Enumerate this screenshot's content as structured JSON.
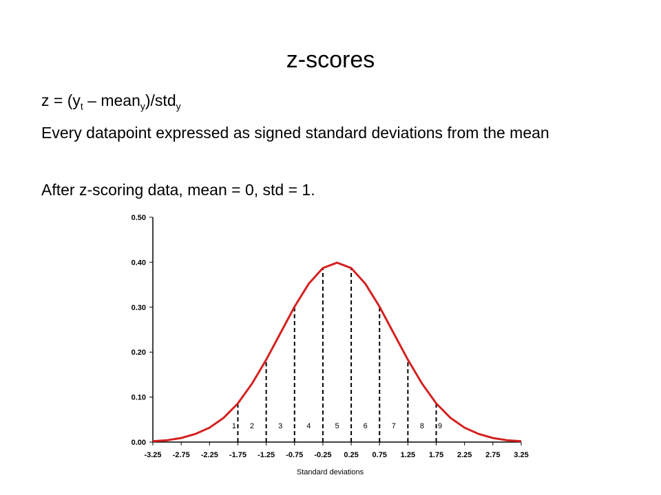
{
  "slide": {
    "title": "z-scores",
    "formula": [
      "z = (y",
      "t",
      " – mean",
      "y",
      ")/std",
      "y"
    ],
    "bullets": [
      "Every datapoint expressed as signed standard deviations from the mean",
      "After z-scoring data, mean = 0, std = 1."
    ]
  },
  "chart_data": {
    "type": "line",
    "xlabel": "Standard deviations",
    "x": [
      -3.25,
      -3,
      -2.75,
      -2.5,
      -2.25,
      -2,
      -1.75,
      -1.5,
      -1.25,
      -1,
      -0.75,
      -0.5,
      -0.25,
      0,
      0.25,
      0.5,
      0.75,
      1,
      1.25,
      1.5,
      1.75,
      2,
      2.25,
      2.5,
      2.75,
      3,
      3.25
    ],
    "values": [
      0.002,
      0.004,
      0.009,
      0.018,
      0.032,
      0.054,
      0.086,
      0.13,
      0.183,
      0.242,
      0.301,
      0.352,
      0.387,
      0.399,
      0.387,
      0.352,
      0.301,
      0.242,
      0.183,
      0.13,
      0.086,
      0.054,
      0.032,
      0.018,
      0.009,
      0.004,
      0.002
    ],
    "color": "#d42020",
    "dividers": {
      "x": [
        -1.75,
        -1.25,
        -0.75,
        -0.25,
        0.25,
        0.75,
        1.25,
        1.75
      ],
      "values": [
        0.086,
        0.183,
        0.301,
        0.387,
        0.387,
        0.301,
        0.183,
        0.086
      ]
    },
    "region_labels": [
      "1",
      "2",
      "3",
      "4",
      "5",
      "6",
      "7",
      "8",
      "9"
    ],
    "xlim": [
      -3.25,
      3.25
    ],
    "ylim": [
      0,
      0.5
    ],
    "xticks": [
      -3.25,
      -2.75,
      -2.25,
      -1.75,
      -1.25,
      -0.75,
      -0.25,
      0.25,
      0.75,
      1.25,
      1.75,
      2.25,
      2.75,
      3.25
    ],
    "yticks": [
      {
        "value": 0,
        "label": "0.00"
      },
      {
        "value": 0.1,
        "label": "0.10"
      },
      {
        "value": 0.2,
        "label": "0.20"
      },
      {
        "value": 0.3,
        "label": "0.30"
      },
      {
        "value": 0.4,
        "label": "0.40"
      },
      {
        "value": 0.5,
        "label": "0.50"
      }
    ]
  }
}
